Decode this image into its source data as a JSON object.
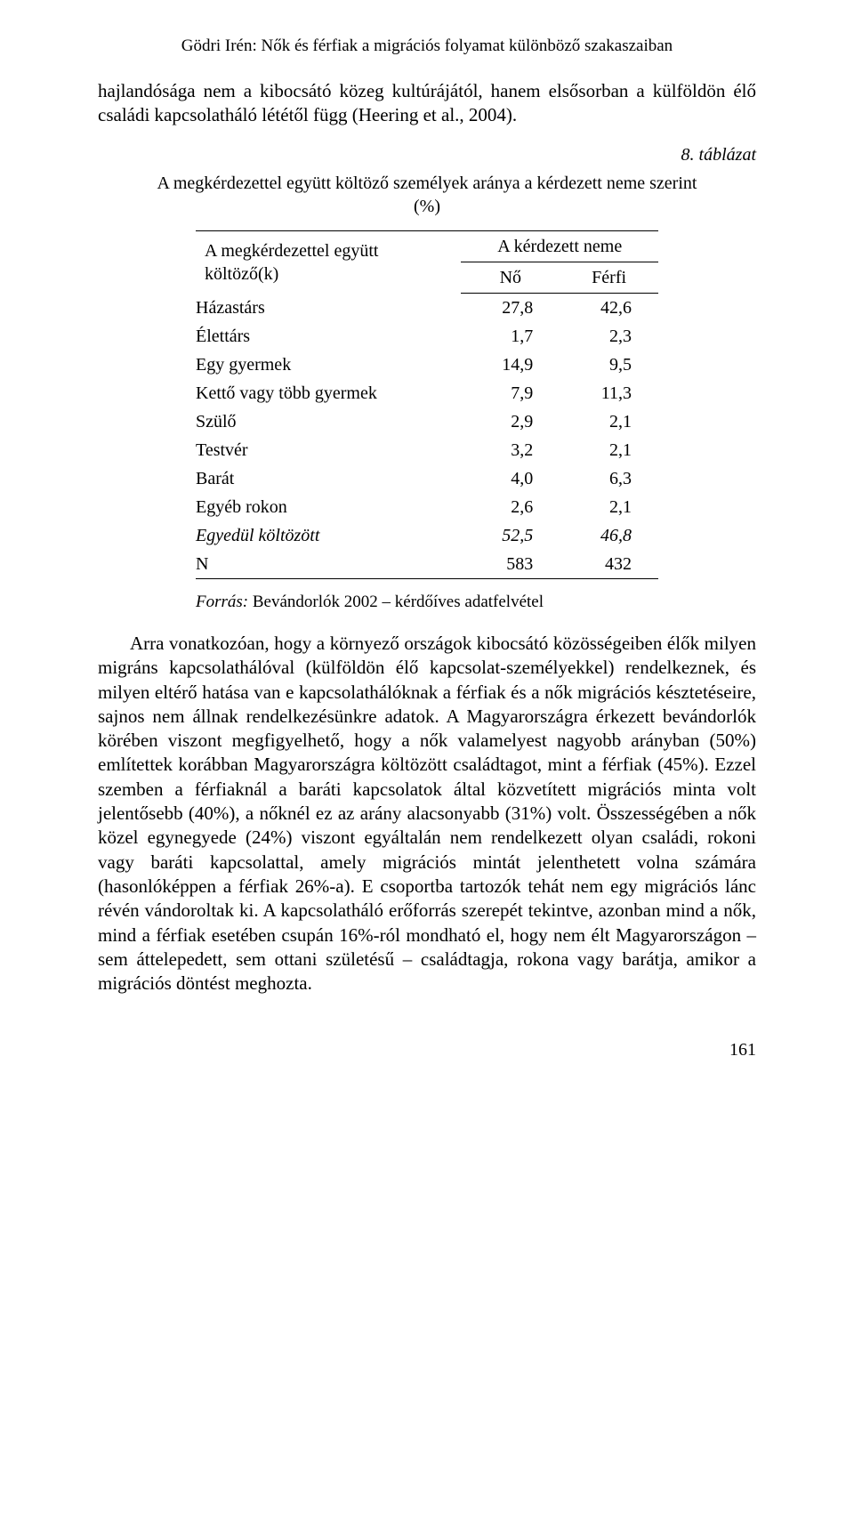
{
  "header": "Gödri Irén: Nők és férfiak a migrációs folyamat különböző szakaszaiban",
  "intro_paragraph": "hajlandósága nem a kibocsátó közeg kultúrájától, hanem elsősorban a külföldön élő családi kapcsolatháló lététől függ (Heering et al., 2004).",
  "table_label": "8. táblázat",
  "table_caption": "A megkérdezettel együtt költöző személyek aránya a kérdezett neme szerint (%)",
  "table": {
    "col_left_header_line1": "A megkérdezettel együtt",
    "col_left_header_line2": "költöző(k)",
    "col_group_header": "A kérdezett neme",
    "col_no": "Nő",
    "col_ferfi": "Férfi",
    "rows": [
      {
        "label": "Házastárs",
        "no": "27,8",
        "ferfi": "42,6",
        "italic": false
      },
      {
        "label": "Élettárs",
        "no": "1,7",
        "ferfi": "2,3",
        "italic": false
      },
      {
        "label": "Egy gyermek",
        "no": "14,9",
        "ferfi": "9,5",
        "italic": false
      },
      {
        "label": "Kettő vagy több gyermek",
        "no": "7,9",
        "ferfi": "11,3",
        "italic": false
      },
      {
        "label": "Szülő",
        "no": "2,9",
        "ferfi": "2,1",
        "italic": false
      },
      {
        "label": "Testvér",
        "no": "3,2",
        "ferfi": "2,1",
        "italic": false
      },
      {
        "label": "Barát",
        "no": "4,0",
        "ferfi": "6,3",
        "italic": false
      },
      {
        "label": "Egyéb rokon",
        "no": "2,6",
        "ferfi": "2,1",
        "italic": false
      },
      {
        "label": "Egyedül költözött",
        "no": "52,5",
        "ferfi": "46,8",
        "italic": true
      },
      {
        "label": "N",
        "no": "583",
        "ferfi": "432",
        "italic": false
      }
    ]
  },
  "source_prefix": "Forrás:",
  "source_text": " Bevándorlók 2002 – kérdőíves adatfelvétel",
  "body_paragraph": "Arra vonatkozóan, hogy a környező országok kibocsátó közösségeiben élők milyen migráns kapcsolathálóval (külföldön élő kapcsolat-személyekkel) rendelkeznek, és milyen eltérő hatása van e kapcsolathálóknak a férfiak és a nők migrációs késztetéseire, sajnos nem állnak rendelkezésünkre adatok. A Magyarországra érkezett bevándorlók körében viszont megfigyelhető, hogy a nők valamelyest nagyobb arányban (50%) említettek korábban Magyarországra költözött családtagot, mint a férfiak (45%). Ezzel szemben a férfiaknál a baráti kapcsolatok által közvetített migrációs minta volt jelentősebb (40%), a nőknél ez az arány alacsonyabb (31%) volt. Összességében a nők közel egynegyede (24%) viszont egyáltalán nem rendelkezett olyan családi, rokoni vagy baráti kapcsolattal, amely migrációs mintát jelenthetett volna számára (hasonlóképpen a férfiak 26%-a). E csoportba tartozók tehát nem egy migrációs lánc révén vándoroltak ki. A kapcsolatháló erőforrás szerepét tekintve, azonban mind a nők, mind a férfiak esetében csupán 16%-ról mondható el, hogy nem élt Magyarországon – sem áttelepedett, sem ottani születésű – családtagja, rokona vagy barátja, amikor a migrációs döntést meghozta.",
  "page_number": "161"
}
